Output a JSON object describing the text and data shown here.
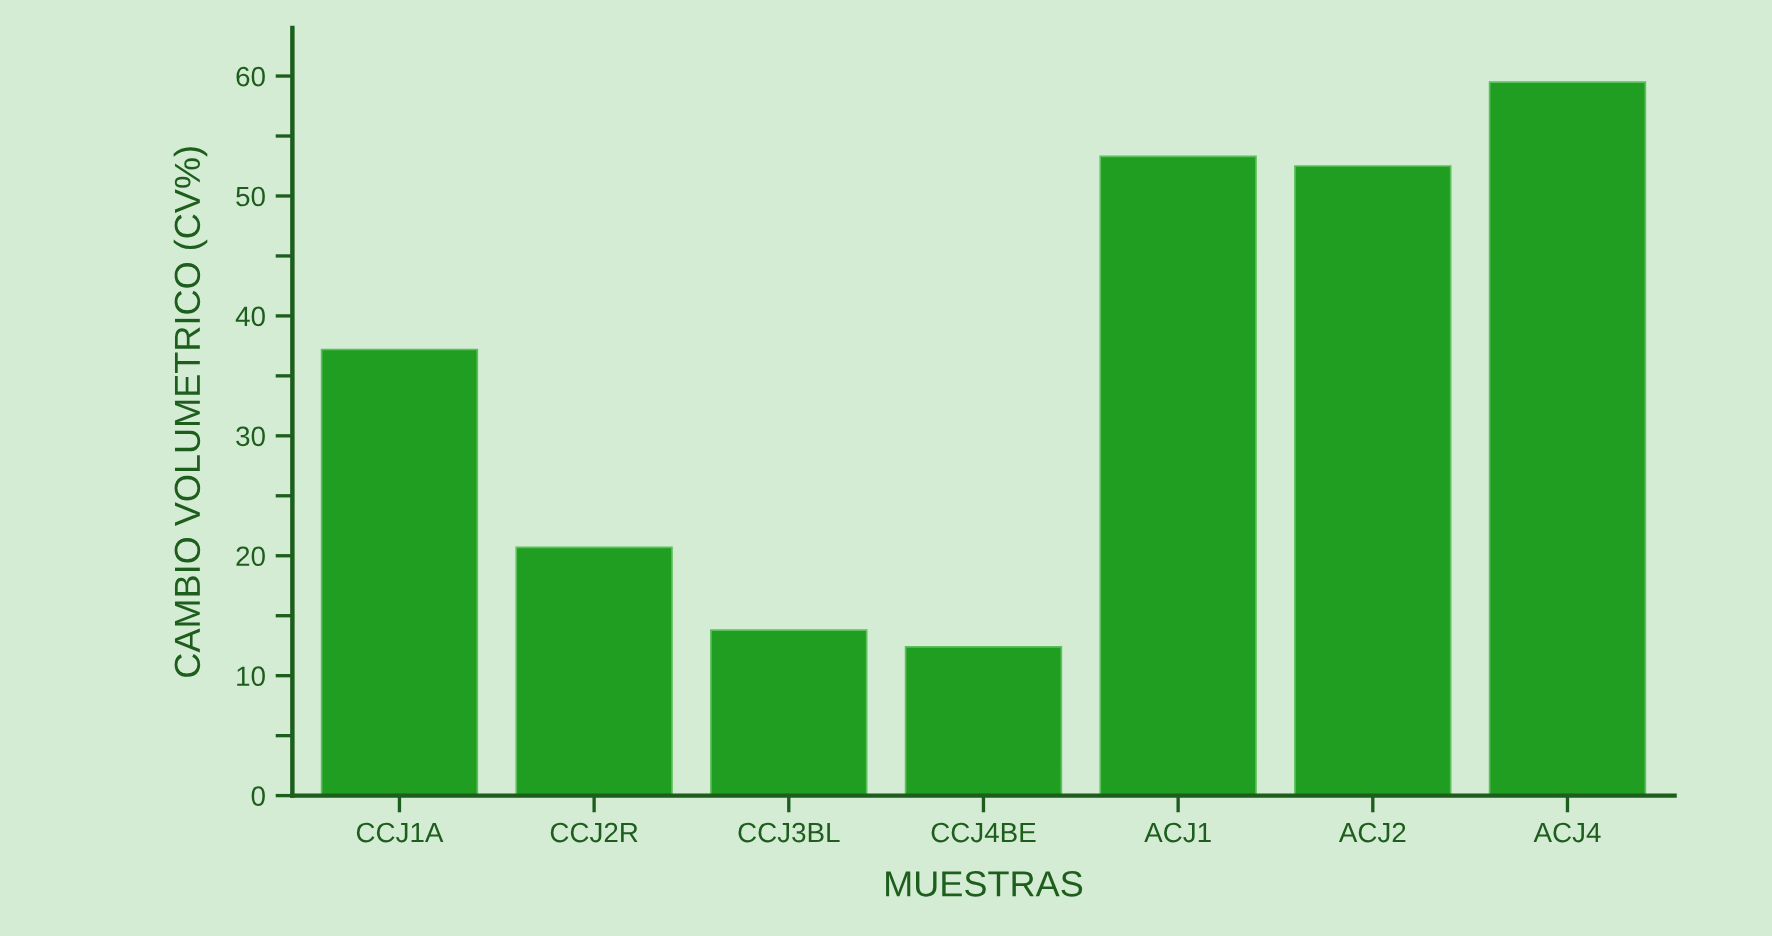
{
  "chart_data": {
    "type": "bar",
    "xlabel": "MUESTRAS",
    "ylabel": "CAMBIO VOLUMETRICO (CV%)",
    "categories": [
      "CCJ1A",
      "CCJ2R",
      "CCJ3BL",
      "CCJ4BE",
      "ACJ1",
      "ACJ2",
      "ACJ4"
    ],
    "values": [
      37.2,
      20.7,
      13.8,
      12.4,
      53.3,
      52.5,
      59.5
    ],
    "color": "#1f9e22",
    "ylim": [
      0,
      64
    ],
    "yticks": [
      0,
      {
        "value": 5,
        "label": null
      },
      10,
      {
        "value": 15,
        "label": null
      },
      20,
      {
        "value": 25,
        "label": null
      },
      30,
      {
        "value": 35,
        "label": null
      },
      40,
      {
        "value": 45,
        "label": null
      },
      50,
      {
        "value": 55,
        "label": null
      },
      60
    ],
    "grid": false,
    "legend": false
  }
}
